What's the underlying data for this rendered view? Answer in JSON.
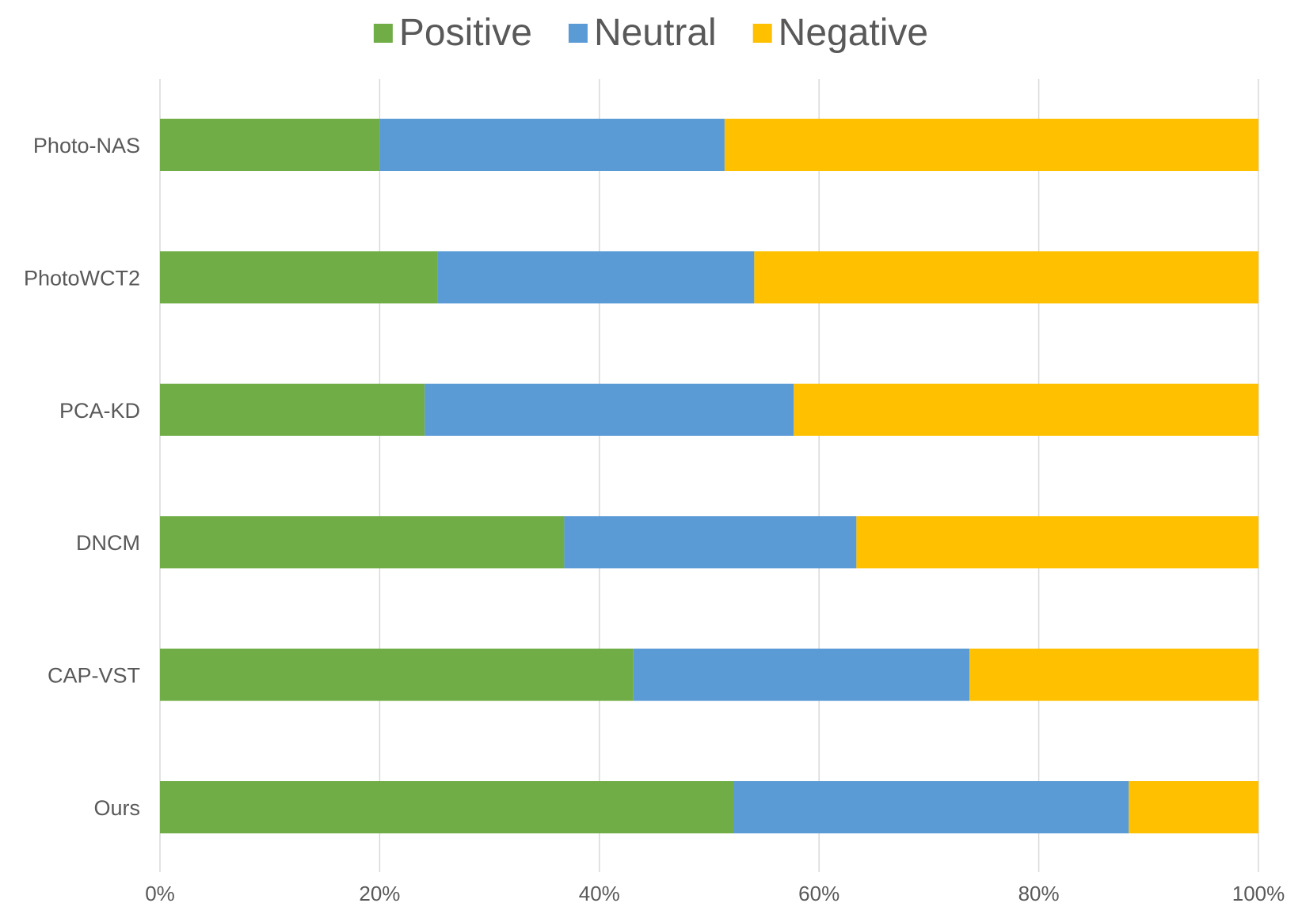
{
  "chart_data": {
    "type": "bar",
    "orientation": "horizontal",
    "stacked": "percent",
    "categories": [
      "Photo-NAS",
      "PhotoWCT2",
      "PCA-KD",
      "DNCM",
      "CAP-VST",
      "Ours"
    ],
    "series": [
      {
        "name": "Positive",
        "color": "#70ad47",
        "values": [
          20,
          25.3,
          24.1,
          36.8,
          43.1,
          52.2
        ]
      },
      {
        "name": "Neutral",
        "color": "#5b9bd5",
        "values": [
          31.4,
          28.8,
          33.6,
          26.6,
          30.6,
          36.0
        ]
      },
      {
        "name": "Negative",
        "color": "#ffc000",
        "values": [
          48.6,
          45.9,
          42.3,
          36.6,
          26.3,
          11.8
        ]
      }
    ],
    "xlim": [
      0,
      100
    ],
    "x_ticks": [
      0,
      20,
      40,
      60,
      80,
      100
    ],
    "x_tick_labels": [
      "0%",
      "20%",
      "40%",
      "60%",
      "80%",
      "100%"
    ],
    "grid": "vertical",
    "legend_position": "top-center",
    "title": "",
    "xlabel": "",
    "ylabel": ""
  }
}
